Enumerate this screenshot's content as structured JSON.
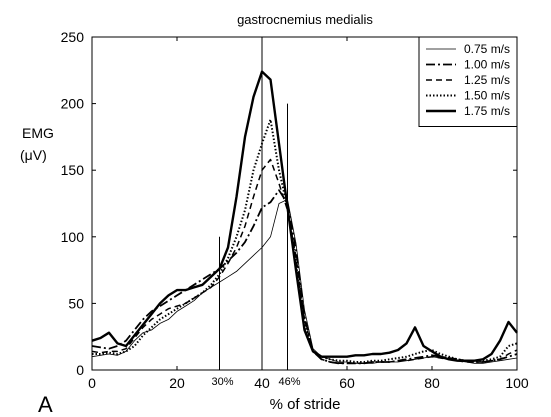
{
  "panel_label": "A",
  "chart_data": {
    "type": "line",
    "title": "gastrocnemius medialis",
    "xlabel": "% of stride",
    "ylabel_lines": [
      "EMG",
      "(μV)"
    ],
    "xlim": [
      0,
      100
    ],
    "ylim": [
      0,
      250
    ],
    "xticks": [
      0,
      20,
      40,
      60,
      80,
      100
    ],
    "yticks": [
      0,
      50,
      100,
      150,
      200,
      250
    ],
    "grid": false,
    "legend_position": "top-right",
    "x": [
      0,
      2,
      4,
      6,
      8,
      10,
      12,
      14,
      16,
      18,
      20,
      22,
      24,
      26,
      28,
      30,
      32,
      34,
      36,
      38,
      40,
      42,
      44,
      46,
      48,
      50,
      52,
      54,
      56,
      58,
      60,
      62,
      64,
      66,
      68,
      70,
      72,
      74,
      76,
      78,
      80,
      82,
      84,
      86,
      88,
      90,
      92,
      94,
      96,
      98,
      100
    ],
    "series": [
      {
        "name": "0.75 m/s",
        "style": "thin-solid",
        "values": [
          10,
          11,
          12,
          11,
          14,
          22,
          28,
          30,
          35,
          38,
          44,
          48,
          52,
          58,
          62,
          66,
          70,
          74,
          80,
          86,
          92,
          100,
          125,
          128,
          95,
          45,
          16,
          10,
          8,
          6,
          6,
          5,
          5,
          5,
          6,
          6,
          6,
          7,
          8,
          9,
          10,
          9,
          8,
          7,
          6,
          5,
          5,
          6,
          7,
          8,
          9
        ]
      },
      {
        "name": "1.00 m/s",
        "style": "dash-dot",
        "values": [
          18,
          17,
          16,
          18,
          22,
          30,
          38,
          44,
          48,
          52,
          56,
          60,
          64,
          68,
          72,
          76,
          82,
          88,
          96,
          108,
          122,
          126,
          135,
          125,
          90,
          40,
          14,
          8,
          6,
          5,
          5,
          5,
          5,
          6,
          6,
          6,
          7,
          8,
          9,
          10,
          11,
          10,
          9,
          8,
          7,
          6,
          6,
          7,
          8,
          10,
          12
        ]
      },
      {
        "name": "1.25 m/s",
        "style": "dashed",
        "values": [
          14,
          13,
          14,
          14,
          16,
          24,
          32,
          38,
          42,
          46,
          48,
          50,
          54,
          58,
          62,
          70,
          80,
          92,
          108,
          130,
          150,
          158,
          140,
          120,
          85,
          38,
          14,
          8,
          6,
          5,
          5,
          5,
          5,
          6,
          6,
          6,
          7,
          7,
          8,
          9,
          10,
          9,
          8,
          7,
          6,
          6,
          6,
          7,
          8,
          12,
          15
        ]
      },
      {
        "name": "1.50 m/s",
        "style": "dotted",
        "values": [
          12,
          12,
          13,
          12,
          14,
          18,
          26,
          32,
          38,
          42,
          46,
          50,
          54,
          58,
          64,
          72,
          84,
          100,
          120,
          150,
          170,
          188,
          150,
          122,
          80,
          35,
          14,
          10,
          8,
          7,
          7,
          6,
          6,
          7,
          7,
          8,
          9,
          10,
          12,
          14,
          15,
          12,
          10,
          8,
          7,
          6,
          7,
          8,
          10,
          18,
          20
        ]
      },
      {
        "name": "1.75 m/s",
        "style": "thick-solid",
        "values": [
          22,
          24,
          28,
          20,
          18,
          26,
          34,
          42,
          50,
          56,
          60,
          60,
          62,
          64,
          70,
          76,
          92,
          130,
          175,
          205,
          224,
          218,
          170,
          122,
          75,
          30,
          14,
          10,
          10,
          10,
          10,
          11,
          11,
          12,
          12,
          13,
          15,
          20,
          32,
          18,
          14,
          10,
          8,
          7,
          7,
          7,
          8,
          12,
          22,
          36,
          28
        ]
      }
    ],
    "vlines": [
      {
        "x": 30,
        "label": "30%"
      },
      {
        "x": 40,
        "label": ""
      },
      {
        "x": 46,
        "label": "46%"
      }
    ]
  }
}
